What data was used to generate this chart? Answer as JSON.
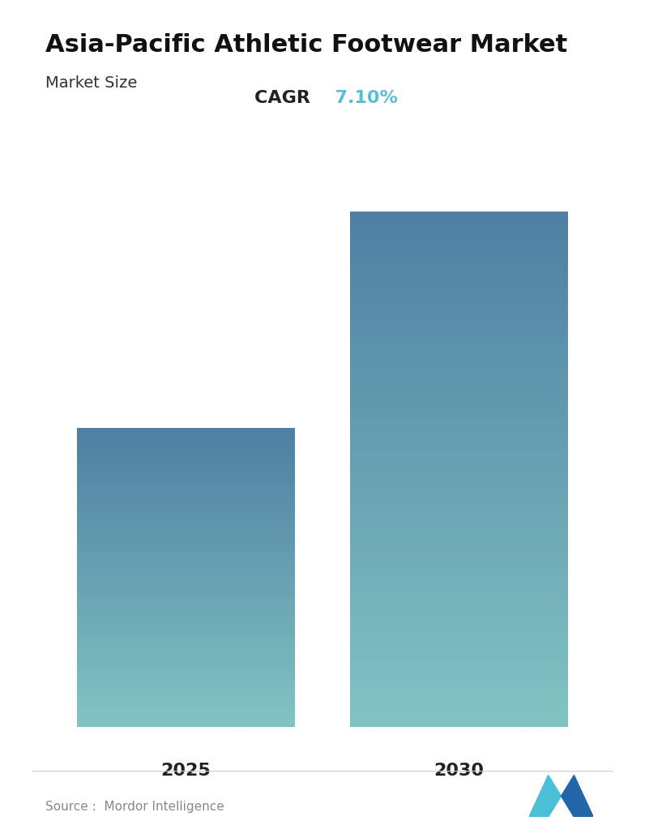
{
  "title": "Asia-Pacific Athletic Footwear Market",
  "subtitle": "Market Size",
  "cagr_label": "CAGR",
  "cagr_value": "7.10%",
  "cagr_color": "#5BBCD6",
  "categories": [
    "2025",
    "2030"
  ],
  "values": [
    0.58,
    1.0
  ],
  "bar_top_color": "#4F7FA3",
  "bar_bottom_color": "#82C4C3",
  "source_text": "Source :  Mordor Intelligence",
  "source_color": "#888888",
  "background_color": "#ffffff",
  "title_fontsize": 22,
  "subtitle_fontsize": 14,
  "cagr_fontsize": 16,
  "tick_fontsize": 16,
  "source_fontsize": 11
}
